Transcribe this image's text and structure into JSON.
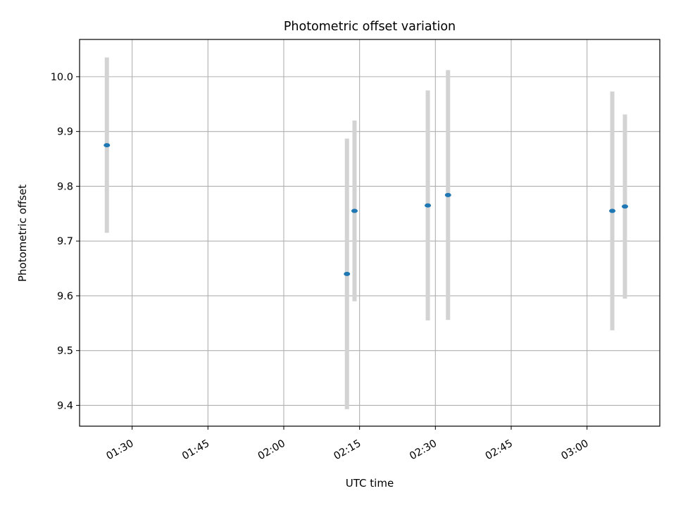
{
  "chart_data": {
    "type": "scatter",
    "title": "Photometric offset variation",
    "xlabel": "UTC time",
    "ylabel": "Photometric offset",
    "x_axis": {
      "kind": "time",
      "range": [
        "01:19:36",
        "03:14:24"
      ],
      "ticks": [
        "01:30",
        "01:45",
        "02:00",
        "02:15",
        "02:30",
        "02:45",
        "03:00"
      ]
    },
    "y_axis": {
      "range": [
        9.362,
        10.068
      ],
      "ticks": [
        "9.4",
        "9.5",
        "9.6",
        "9.7",
        "9.8",
        "9.9",
        "10.0"
      ]
    },
    "grid": true,
    "legend": false,
    "colors": {
      "point": "#1f77b4",
      "errorbar": "#d3d3d3",
      "grid": "#b0b0b0"
    },
    "points": [
      {
        "x": "01:25:00",
        "y": 9.875,
        "yerr": 0.16
      },
      {
        "x": "02:12:30",
        "y": 9.64,
        "yerr": 0.247
      },
      {
        "x": "02:14:00",
        "y": 9.755,
        "yerr": 0.165
      },
      {
        "x": "02:28:30",
        "y": 9.765,
        "yerr": 0.21
      },
      {
        "x": "02:32:30",
        "y": 9.784,
        "yerr": 0.228
      },
      {
        "x": "03:05:00",
        "y": 9.755,
        "yerr": 0.218
      },
      {
        "x": "03:07:30",
        "y": 9.763,
        "yerr": 0.168
      }
    ]
  }
}
